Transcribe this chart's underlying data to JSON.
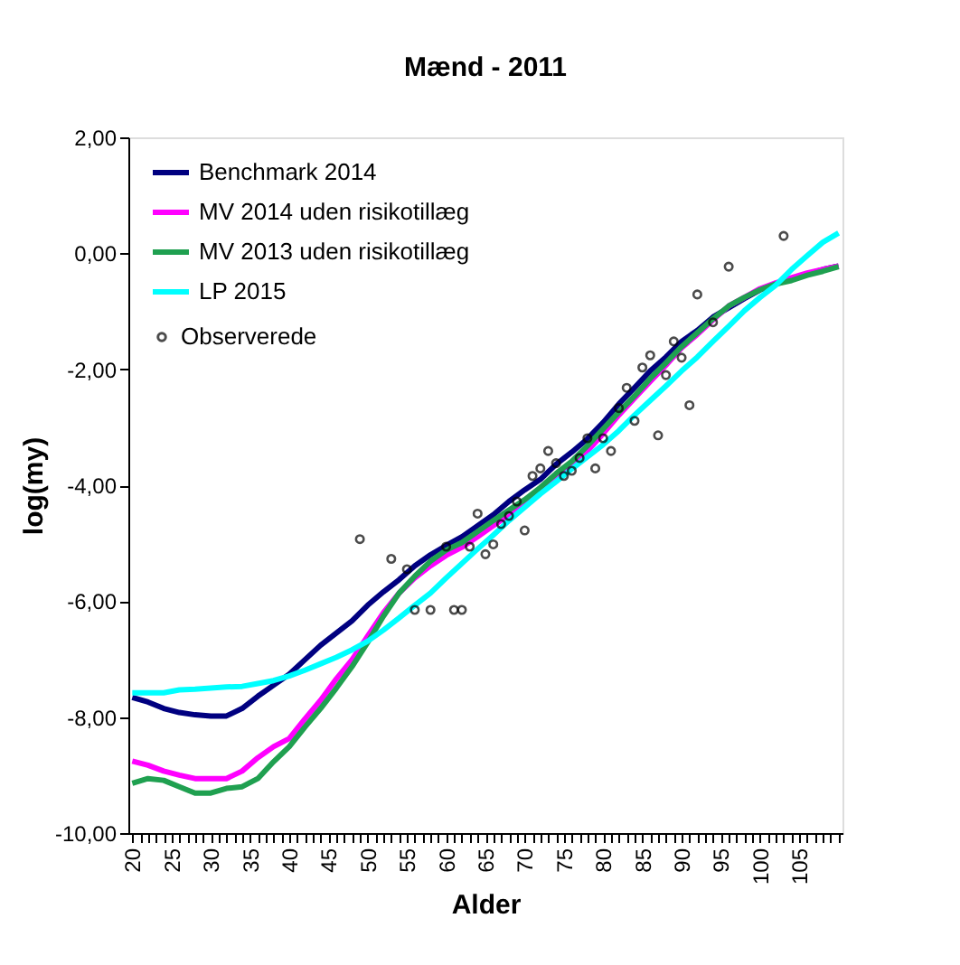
{
  "chart_data": {
    "type": "line",
    "title": "Mænd - 2011",
    "xlabel": "Alder",
    "ylabel": "log(my)",
    "x": [
      20,
      22,
      24,
      26,
      28,
      30,
      32,
      34,
      36,
      38,
      40,
      42,
      44,
      46,
      48,
      50,
      52,
      54,
      56,
      58,
      60,
      62,
      64,
      66,
      68,
      70,
      72,
      74,
      76,
      78,
      80,
      82,
      84,
      86,
      88,
      90,
      92,
      94,
      96,
      98,
      100,
      102,
      104,
      106,
      108,
      110
    ],
    "series": [
      {
        "name": "Benchmark 2014",
        "color": "#000080",
        "values": [
          -7.66,
          -7.74,
          -7.85,
          -7.92,
          -7.96,
          -7.98,
          -7.98,
          -7.85,
          -7.64,
          -7.45,
          -7.26,
          -7.01,
          -6.76,
          -6.55,
          -6.34,
          -6.07,
          -5.84,
          -5.63,
          -5.39,
          -5.2,
          -5.04,
          -4.89,
          -4.7,
          -4.51,
          -4.28,
          -4.08,
          -3.9,
          -3.64,
          -3.43,
          -3.2,
          -2.92,
          -2.6,
          -2.32,
          -2.03,
          -1.79,
          -1.52,
          -1.33,
          -1.1,
          -0.94,
          -0.78,
          -0.63,
          -0.53,
          -0.44,
          -0.36,
          -0.28,
          -0.22
        ]
      },
      {
        "name": "MV 2014 uden risikotillæg",
        "color": "#ff00ff",
        "values": [
          -8.76,
          -8.83,
          -8.93,
          -9.0,
          -9.06,
          -9.06,
          -9.06,
          -8.93,
          -8.7,
          -8.51,
          -8.37,
          -8.03,
          -7.71,
          -7.34,
          -7.01,
          -6.6,
          -6.2,
          -5.86,
          -5.6,
          -5.39,
          -5.21,
          -5.07,
          -4.89,
          -4.7,
          -4.51,
          -4.33,
          -4.12,
          -3.9,
          -3.69,
          -3.41,
          -3.11,
          -2.79,
          -2.5,
          -2.21,
          -1.93,
          -1.63,
          -1.4,
          -1.15,
          -0.91,
          -0.76,
          -0.61,
          -0.51,
          -0.42,
          -0.34,
          -0.28,
          -0.22
        ]
      },
      {
        "name": "MV 2013 uden risikotillæg",
        "color": "#1fa050",
        "values": [
          -9.14,
          -9.06,
          -9.09,
          -9.2,
          -9.31,
          -9.31,
          -9.23,
          -9.2,
          -9.06,
          -8.77,
          -8.51,
          -8.17,
          -7.85,
          -7.5,
          -7.13,
          -6.71,
          -6.26,
          -5.86,
          -5.57,
          -5.31,
          -5.12,
          -4.99,
          -4.8,
          -4.61,
          -4.43,
          -4.25,
          -4.04,
          -3.8,
          -3.59,
          -3.32,
          -3.03,
          -2.74,
          -2.46,
          -2.16,
          -1.89,
          -1.61,
          -1.37,
          -1.13,
          -0.91,
          -0.76,
          -0.63,
          -0.53,
          -0.47,
          -0.38,
          -0.31,
          -0.23
        ]
      },
      {
        "name": "LP 2015",
        "color": "#00ffff",
        "values": [
          -7.58,
          -7.58,
          -7.58,
          -7.53,
          -7.52,
          -7.5,
          -7.48,
          -7.47,
          -7.42,
          -7.37,
          -7.29,
          -7.19,
          -7.08,
          -6.97,
          -6.84,
          -6.69,
          -6.5,
          -6.29,
          -6.07,
          -5.86,
          -5.6,
          -5.35,
          -5.1,
          -4.86,
          -4.61,
          -4.38,
          -4.15,
          -3.94,
          -3.72,
          -3.51,
          -3.3,
          -3.06,
          -2.79,
          -2.54,
          -2.29,
          -2.03,
          -1.79,
          -1.52,
          -1.26,
          -0.99,
          -0.76,
          -0.55,
          -0.28,
          -0.04,
          0.19,
          0.35
        ]
      },
      {
        "name": "Observerede",
        "type": "scatter",
        "marker": "circle",
        "color": "#000000",
        "x": [
          49,
          53,
          55,
          56,
          58,
          60,
          61,
          62,
          63,
          64,
          65,
          66,
          67,
          68,
          69,
          70,
          71,
          72,
          73,
          74,
          75,
          76,
          77,
          78,
          79,
          80,
          81,
          82,
          83,
          84,
          85,
          86,
          87,
          88,
          89,
          90,
          91,
          92,
          94,
          96,
          103
        ],
        "values": [
          -4.93,
          -5.27,
          -5.45,
          -6.15,
          -6.15,
          -5.06,
          -6.15,
          -6.15,
          -5.06,
          -4.49,
          -5.19,
          -5.02,
          -4.67,
          -4.53,
          -4.28,
          -4.78,
          -3.84,
          -3.71,
          -3.41,
          -3.62,
          -3.84,
          -3.75,
          -3.53,
          -3.19,
          -3.71,
          -3.19,
          -3.41,
          -2.67,
          -2.32,
          -2.89,
          -1.97,
          -1.76,
          -3.14,
          -2.1,
          -1.52,
          -1.8,
          -2.62,
          -0.71,
          -1.19,
          -0.23,
          0.3
        ]
      }
    ],
    "marker": "none",
    "line_style": "solid",
    "legend": "top left",
    "grid": false,
    "xlim": [
      19.5,
      110.5
    ],
    "xticks": [
      20,
      {
        "value": 21,
        "label": null
      },
      {
        "value": 22,
        "label": null
      },
      {
        "value": 23,
        "label": null
      },
      {
        "value": 24,
        "label": null
      },
      25,
      {
        "value": 26,
        "label": null
      },
      {
        "value": 27,
        "label": null
      },
      {
        "value": 28,
        "label": null
      },
      {
        "value": 29,
        "label": null
      },
      30,
      {
        "value": 31,
        "label": null
      },
      {
        "value": 32,
        "label": null
      },
      {
        "value": 33,
        "label": null
      },
      {
        "value": 34,
        "label": null
      },
      35,
      {
        "value": 36,
        "label": null
      },
      {
        "value": 37,
        "label": null
      },
      {
        "value": 38,
        "label": null
      },
      {
        "value": 39,
        "label": null
      },
      40,
      {
        "value": 41,
        "label": null
      },
      {
        "value": 42,
        "label": null
      },
      {
        "value": 43,
        "label": null
      },
      {
        "value": 44,
        "label": null
      },
      45,
      {
        "value": 46,
        "label": null
      },
      {
        "value": 47,
        "label": null
      },
      {
        "value": 48,
        "label": null
      },
      {
        "value": 49,
        "label": null
      },
      50,
      {
        "value": 51,
        "label": null
      },
      {
        "value": 52,
        "label": null
      },
      {
        "value": 53,
        "label": null
      },
      {
        "value": 54,
        "label": null
      },
      55,
      {
        "value": 56,
        "label": null
      },
      {
        "value": 57,
        "label": null
      },
      {
        "value": 58,
        "label": null
      },
      {
        "value": 59,
        "label": null
      },
      60,
      {
        "value": 61,
        "label": null
      },
      {
        "value": 62,
        "label": null
      },
      {
        "value": 63,
        "label": null
      },
      {
        "value": 64,
        "label": null
      },
      65,
      {
        "value": 66,
        "label": null
      },
      {
        "value": 67,
        "label": null
      },
      {
        "value": 68,
        "label": null
      },
      {
        "value": 69,
        "label": null
      },
      70,
      {
        "value": 71,
        "label": null
      },
      {
        "value": 72,
        "label": null
      },
      {
        "value": 73,
        "label": null
      },
      {
        "value": 74,
        "label": null
      },
      75,
      {
        "value": 76,
        "label": null
      },
      {
        "value": 77,
        "label": null
      },
      {
        "value": 78,
        "label": null
      },
      {
        "value": 79,
        "label": null
      },
      80,
      {
        "value": 81,
        "label": null
      },
      {
        "value": 82,
        "label": null
      },
      {
        "value": 83,
        "label": null
      },
      {
        "value": 84,
        "label": null
      },
      85,
      {
        "value": 86,
        "label": null
      },
      {
        "value": 87,
        "label": null
      },
      {
        "value": 88,
        "label": null
      },
      {
        "value": 89,
        "label": null
      },
      90,
      {
        "value": 91,
        "label": null
      },
      {
        "value": 92,
        "label": null
      },
      {
        "value": 93,
        "label": null
      },
      {
        "value": 94,
        "label": null
      },
      95,
      {
        "value": 96,
        "label": null
      },
      {
        "value": 97,
        "label": null
      },
      {
        "value": 98,
        "label": null
      },
      {
        "value": 99,
        "label": null
      },
      100,
      {
        "value": 101,
        "label": null
      },
      {
        "value": 102,
        "label": null
      },
      {
        "value": 103,
        "label": null
      },
      {
        "value": 104,
        "label": null
      },
      105,
      {
        "value": 106,
        "label": null
      },
      {
        "value": 107,
        "label": null
      },
      {
        "value": 108,
        "label": null
      },
      {
        "value": 109,
        "label": null
      },
      {
        "value": 110,
        "label": null
      }
    ],
    "ylim": [
      -10,
      2
    ],
    "yticks": [
      {
        "value": -10,
        "label": "-10,00"
      },
      {
        "value": -8,
        "label": "-8,00"
      },
      {
        "value": -6,
        "label": "-6,00"
      },
      {
        "value": -4,
        "label": "-4,00"
      },
      {
        "value": -2,
        "label": "-2,00"
      },
      {
        "value": 0,
        "label": "0,00"
      },
      {
        "value": 2,
        "label": "2,00"
      }
    ]
  }
}
